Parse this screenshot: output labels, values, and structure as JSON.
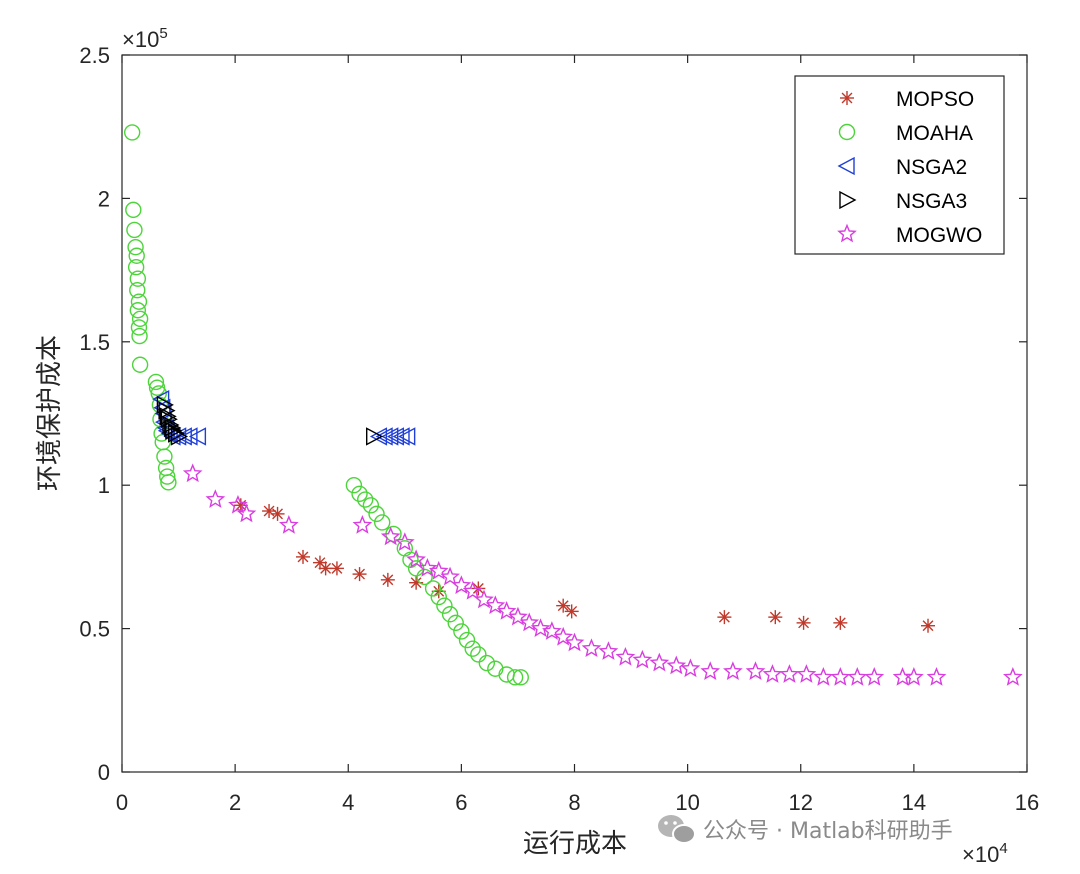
{
  "watermark": {
    "text": "公众号 · Matlab科研助手",
    "icon": "wechat-icon"
  },
  "chart_data": {
    "type": "scatter",
    "xlabel": "运行成本",
    "ylabel": "环境保护成本",
    "x_exponent": "×10⁴",
    "y_exponent": "×10⁵",
    "x_exp_label": "10",
    "x_exp_power": "4",
    "y_exp_label": "10",
    "y_exp_power": "5",
    "xlim": [
      0,
      16
    ],
    "ylim": [
      0,
      2.5
    ],
    "x_ticks": [
      0,
      2,
      4,
      6,
      8,
      10,
      12,
      14,
      16
    ],
    "x_tick_labels": [
      "0",
      "2",
      "4",
      "6",
      "8",
      "10",
      "12",
      "14",
      "16"
    ],
    "y_ticks": [
      0,
      0.5,
      1,
      1.5,
      2,
      2.5
    ],
    "y_tick_labels": [
      "0",
      "0.5",
      "1",
      "1.5",
      "2",
      "2.5"
    ],
    "grid": false,
    "legend_position": "top-right",
    "series": [
      {
        "name": "MOPSO",
        "marker": "asterisk",
        "color": "#c0392b",
        "points": [
          [
            2.1,
            0.93
          ],
          [
            2.6,
            0.91
          ],
          [
            2.75,
            0.9
          ],
          [
            3.2,
            0.75
          ],
          [
            3.5,
            0.73
          ],
          [
            3.6,
            0.71
          ],
          [
            3.8,
            0.71
          ],
          [
            4.2,
            0.69
          ],
          [
            4.7,
            0.67
          ],
          [
            5.2,
            0.66
          ],
          [
            5.6,
            0.63
          ],
          [
            6.3,
            0.64
          ],
          [
            7.8,
            0.58
          ],
          [
            7.95,
            0.56
          ],
          [
            10.65,
            0.54
          ],
          [
            11.55,
            0.54
          ],
          [
            12.05,
            0.52
          ],
          [
            12.7,
            0.52
          ],
          [
            14.25,
            0.51
          ]
        ]
      },
      {
        "name": "MOAHA",
        "marker": "circle",
        "color": "#4cd43a",
        "points": [
          [
            0.18,
            2.23
          ],
          [
            0.2,
            1.96
          ],
          [
            0.22,
            1.89
          ],
          [
            0.24,
            1.83
          ],
          [
            0.26,
            1.8
          ],
          [
            0.25,
            1.76
          ],
          [
            0.28,
            1.72
          ],
          [
            0.27,
            1.68
          ],
          [
            0.3,
            1.64
          ],
          [
            0.28,
            1.61
          ],
          [
            0.32,
            1.58
          ],
          [
            0.3,
            1.55
          ],
          [
            0.31,
            1.52
          ],
          [
            0.32,
            1.42
          ],
          [
            0.6,
            1.36
          ],
          [
            0.62,
            1.34
          ],
          [
            0.65,
            1.32
          ],
          [
            0.67,
            1.28
          ],
          [
            0.68,
            1.23
          ],
          [
            0.7,
            1.18
          ],
          [
            0.72,
            1.15
          ],
          [
            0.75,
            1.1
          ],
          [
            0.78,
            1.06
          ],
          [
            0.8,
            1.03
          ],
          [
            0.82,
            1.01
          ],
          [
            4.1,
            1.0
          ],
          [
            4.2,
            0.97
          ],
          [
            4.3,
            0.95
          ],
          [
            4.4,
            0.93
          ],
          [
            4.5,
            0.9
          ],
          [
            4.6,
            0.87
          ],
          [
            4.8,
            0.83
          ],
          [
            5.0,
            0.78
          ],
          [
            5.1,
            0.74
          ],
          [
            5.2,
            0.71
          ],
          [
            5.35,
            0.68
          ],
          [
            5.5,
            0.64
          ],
          [
            5.6,
            0.61
          ],
          [
            5.7,
            0.58
          ],
          [
            5.8,
            0.55
          ],
          [
            5.9,
            0.52
          ],
          [
            6.0,
            0.49
          ],
          [
            6.1,
            0.46
          ],
          [
            6.2,
            0.43
          ],
          [
            6.3,
            0.41
          ],
          [
            6.45,
            0.38
          ],
          [
            6.6,
            0.36
          ],
          [
            6.8,
            0.34
          ],
          [
            6.95,
            0.33
          ],
          [
            7.05,
            0.33
          ]
        ]
      },
      {
        "name": "NSGA2",
        "marker": "triangle-left",
        "color": "#1f3fd8",
        "points": [
          [
            0.7,
            1.3
          ],
          [
            0.72,
            1.27
          ],
          [
            0.74,
            1.25
          ],
          [
            0.75,
            1.22
          ],
          [
            0.78,
            1.2
          ],
          [
            0.8,
            1.19
          ],
          [
            0.85,
            1.18
          ],
          [
            0.9,
            1.17
          ],
          [
            1.0,
            1.17
          ],
          [
            1.1,
            1.17
          ],
          [
            1.2,
            1.17
          ],
          [
            1.35,
            1.17
          ],
          [
            4.55,
            1.17
          ],
          [
            4.65,
            1.17
          ],
          [
            4.75,
            1.17
          ],
          [
            4.85,
            1.17
          ],
          [
            4.95,
            1.17
          ],
          [
            5.05,
            1.17
          ]
        ]
      },
      {
        "name": "NSGA3",
        "marker": "triangle-right",
        "color": "#000000",
        "points": [
          [
            0.75,
            1.28
          ],
          [
            0.78,
            1.26
          ],
          [
            0.8,
            1.24
          ],
          [
            0.82,
            1.23
          ],
          [
            0.85,
            1.21
          ],
          [
            0.88,
            1.2
          ],
          [
            0.9,
            1.19
          ],
          [
            0.95,
            1.18
          ],
          [
            1.0,
            1.17
          ],
          [
            4.45,
            1.17
          ]
        ]
      },
      {
        "name": "MOGWO",
        "marker": "star",
        "color": "#d93ee0",
        "points": [
          [
            1.25,
            1.04
          ],
          [
            1.65,
            0.95
          ],
          [
            2.05,
            0.93
          ],
          [
            2.2,
            0.9
          ],
          [
            2.95,
            0.86
          ],
          [
            4.25,
            0.86
          ],
          [
            4.75,
            0.82
          ],
          [
            5.0,
            0.8
          ],
          [
            5.2,
            0.74
          ],
          [
            5.4,
            0.71
          ],
          [
            5.6,
            0.7
          ],
          [
            5.8,
            0.68
          ],
          [
            6.0,
            0.65
          ],
          [
            6.2,
            0.63
          ],
          [
            6.4,
            0.6
          ],
          [
            6.6,
            0.58
          ],
          [
            6.8,
            0.56
          ],
          [
            7.0,
            0.54
          ],
          [
            7.2,
            0.52
          ],
          [
            7.4,
            0.5
          ],
          [
            7.6,
            0.49
          ],
          [
            7.8,
            0.47
          ],
          [
            8.0,
            0.45
          ],
          [
            8.3,
            0.43
          ],
          [
            8.6,
            0.42
          ],
          [
            8.9,
            0.4
          ],
          [
            9.2,
            0.39
          ],
          [
            9.5,
            0.38
          ],
          [
            9.8,
            0.37
          ],
          [
            10.05,
            0.36
          ],
          [
            10.4,
            0.35
          ],
          [
            10.8,
            0.35
          ],
          [
            11.2,
            0.35
          ],
          [
            11.5,
            0.34
          ],
          [
            11.8,
            0.34
          ],
          [
            12.1,
            0.34
          ],
          [
            12.4,
            0.33
          ],
          [
            12.7,
            0.33
          ],
          [
            13.0,
            0.33
          ],
          [
            13.3,
            0.33
          ],
          [
            13.8,
            0.33
          ],
          [
            14.0,
            0.33
          ],
          [
            14.4,
            0.33
          ],
          [
            15.75,
            0.33
          ]
        ]
      }
    ]
  }
}
